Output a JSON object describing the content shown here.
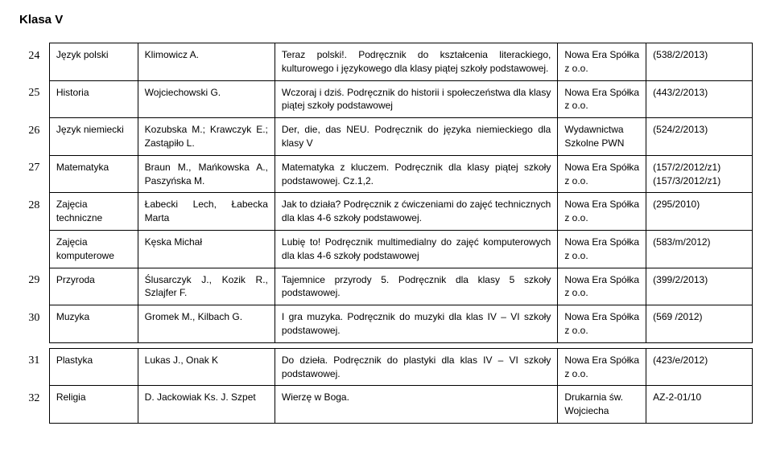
{
  "title": "Klasa V",
  "rows": [
    {
      "num": "24",
      "subject": "Język polski",
      "author": "Klimowicz A.",
      "title": "Teraz polski!. Podręcznik do kształcenia literackiego, kulturowego i językowego dla klasy piątej szkoły podstawowej.",
      "publisher": "Nowa Era Spółka z o.o.",
      "ref": "(538/2/2013)"
    },
    {
      "num": "25",
      "subject": "Historia",
      "author": "Wojciechowski G.",
      "title": "Wczoraj i dziś. Podręcznik do historii i społeczeństwa dla klasy piątej szkoły podstawowej",
      "publisher": "Nowa Era Spółka z o.o.",
      "ref": "(443/2/2013)"
    },
    {
      "num": "26",
      "subject": "Język niemiecki",
      "author": "Kozubska M.; Krawczyk E.; Zastąpiło L.",
      "title": "Der, die, das NEU. Podręcznik do języka niemieckiego dla klasy V",
      "publisher": "Wydawnictwa Szkolne PWN",
      "ref": "(524/2/2013)"
    },
    {
      "num": "27",
      "subject": "Matematyka",
      "author": "Braun M., Mańkowska A., Paszyńska M.",
      "title": "Matematyka z kluczem. Podręcznik dla klasy piątej szkoły podstawowej. Cz.1,2.",
      "publisher": "Nowa Era Spółka z o.o.",
      "ref": "(157/2/2012/z1) (157/3/2012/z1)"
    },
    {
      "num": "28",
      "subject": "Zajęcia techniczne",
      "author": "Łabecki Lech, Łabecka Marta",
      "title": "Jak to działa? Podręcznik z ćwiczeniami do zajęć technicznych dla klas 4-6 szkoły podstawowej.",
      "publisher": "Nowa Era Spółka z o.o.",
      "ref": "(295/2010)"
    },
    {
      "num": "",
      "subject": "Zajęcia komputerowe",
      "author": "Kęska Michał",
      "title": "Lubię to! Podręcznik multimedialny do zajęć komputerowych dla klas 4-6 szkoły podstawowej",
      "publisher": "Nowa Era Spółka z o.o.",
      "ref": "(583/m/2012)"
    },
    {
      "num": "29",
      "subject": "Przyroda",
      "author": "Ślusarczyk J., Kozik R., Szlajfer F.",
      "title": "Tajemnice przyrody 5. Podręcznik dla klasy 5 szkoły podstawowej.",
      "publisher": "Nowa Era Spółka z o.o.",
      "ref": "(399/2/2013)"
    },
    {
      "num": "30",
      "subject": "Muzyka",
      "author": "Gromek M., Kilbach G.",
      "title": "I gra muzyka. Podręcznik do muzyki dla klas IV – VI szkoły podstawowej.",
      "publisher": "Nowa Era Spółka z o.o.",
      "ref": "(569 /2012)"
    },
    {
      "num": "31",
      "subject": "Plastyka",
      "author": "Lukas J., Onak K",
      "title": "Do dzieła. Podręcznik do plastyki dla klas IV – VI szkoły podstawowej.",
      "publisher": "Nowa Era Spółka z o.o.",
      "ref": "(423/e/2012)"
    },
    {
      "num": "32",
      "subject": "Religia",
      "author": "D. Jackowiak Ks. J. Szpet",
      "title": "Wierzę w Boga.",
      "publisher": "Drukarnia św. Wojciecha",
      "ref": "AZ-2-01/10"
    }
  ]
}
